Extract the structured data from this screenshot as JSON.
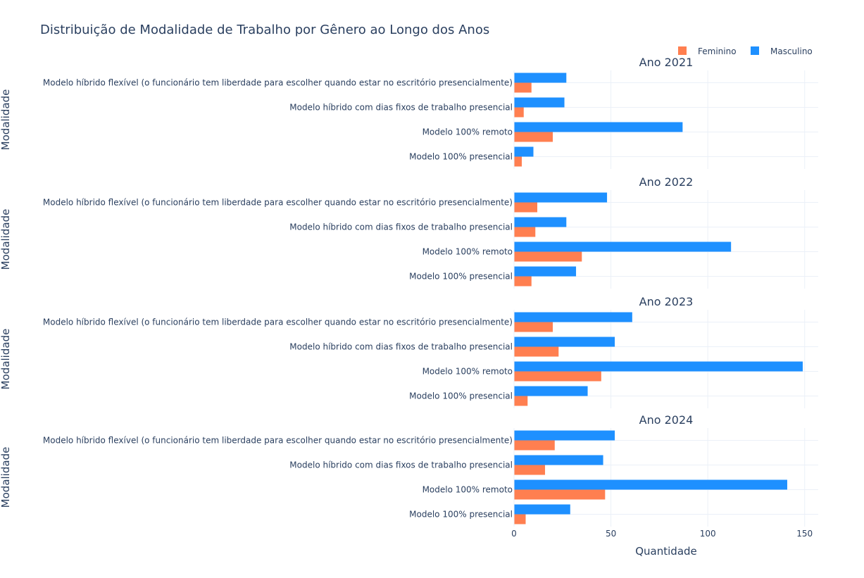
{
  "chart_data": {
    "type": "bar",
    "orientation": "horizontal",
    "title": "Distribuição de Modalidade de Trabalho por Gênero ao Longo dos Anos",
    "xlabel": "Quantidade",
    "ylabel": "Modalidade",
    "xlim": [
      0,
      157
    ],
    "xticks": [
      0,
      50,
      100,
      150
    ],
    "grid": true,
    "legend_position": "top-right",
    "legend": [
      {
        "name": "Feminino",
        "color": "#FF7F50"
      },
      {
        "name": "Masculino",
        "color": "#1E90FF"
      }
    ],
    "categories": [
      "Modelo híbrido flexível (o funcionário tem liberdade para escolher quando estar no escritório presencialmente)",
      "Modelo híbrido com dias fixos de trabalho presencial",
      "Modelo 100% remoto",
      "Modelo 100% presencial"
    ],
    "panels": [
      {
        "title": "Ano 2021",
        "series": [
          {
            "name": "Masculino",
            "values": [
              27,
              26,
              87,
              10
            ]
          },
          {
            "name": "Feminino",
            "values": [
              9,
              5,
              20,
              4
            ]
          }
        ]
      },
      {
        "title": "Ano 2022",
        "series": [
          {
            "name": "Masculino",
            "values": [
              48,
              27,
              112,
              32
            ]
          },
          {
            "name": "Feminino",
            "values": [
              12,
              11,
              35,
              9
            ]
          }
        ]
      },
      {
        "title": "Ano 2023",
        "series": [
          {
            "name": "Masculino",
            "values": [
              61,
              52,
              149,
              38
            ]
          },
          {
            "name": "Feminino",
            "values": [
              20,
              23,
              45,
              7
            ]
          }
        ]
      },
      {
        "title": "Ano 2024",
        "series": [
          {
            "name": "Masculino",
            "values": [
              52,
              46,
              141,
              29
            ]
          },
          {
            "name": "Feminino",
            "values": [
              21,
              16,
              47,
              6
            ]
          }
        ]
      }
    ]
  }
}
